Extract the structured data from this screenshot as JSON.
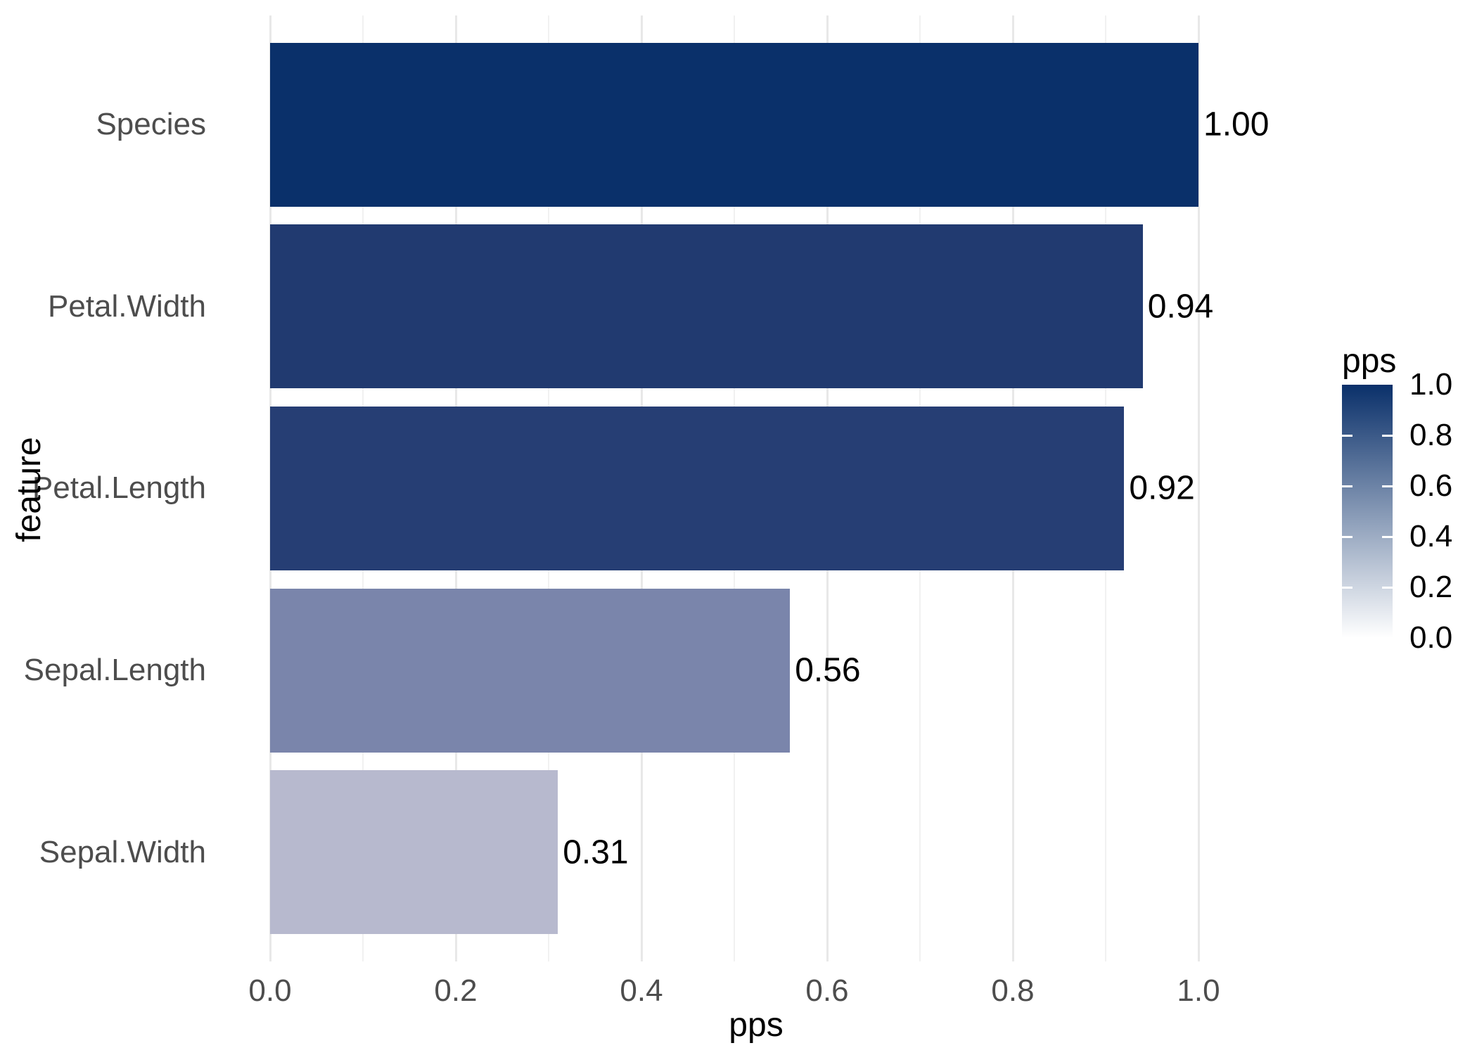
{
  "chart_data": {
    "type": "bar",
    "orientation": "horizontal",
    "categories": [
      "Species",
      "Petal.Width",
      "Petal.Length",
      "Sepal.Length",
      "Sepal.Width"
    ],
    "values": [
      1.0,
      0.94,
      0.92,
      0.56,
      0.31
    ],
    "value_labels": [
      "1.00",
      "0.94",
      "0.92",
      "0.56",
      "0.31"
    ],
    "bar_colors": [
      "#0a306a",
      "#213a70",
      "#263e74",
      "#7a85ab",
      "#b7b9ce"
    ],
    "title": "",
    "xlabel": "pps",
    "ylabel": "feature",
    "xlim": [
      0,
      1.1
    ],
    "x_ticks": [
      0.0,
      0.2,
      0.4,
      0.6,
      0.8,
      1.0
    ],
    "x_tick_labels": [
      "0.0",
      "0.2",
      "0.4",
      "0.6",
      "0.8",
      "1.0"
    ],
    "grid": "vertical major at 0.2 steps, minor at 0.1 steps",
    "legend": {
      "title": "pps",
      "type": "gradient-colorbar",
      "position": "right",
      "high_color": "#0a306a",
      "low_color": "#ffffff",
      "tick_labels": [
        "1.0",
        "0.8",
        "0.6",
        "0.4",
        "0.2",
        "0.0"
      ],
      "tick_values": [
        1.0,
        0.8,
        0.6,
        0.4,
        0.2,
        0.0
      ]
    }
  },
  "colors": {
    "axis_tick_text": "#4d4d4d",
    "title_text": "#000000",
    "grid_major": "#e8e8e8",
    "grid_minor": "#f1f1f1",
    "background": "#ffffff"
  }
}
